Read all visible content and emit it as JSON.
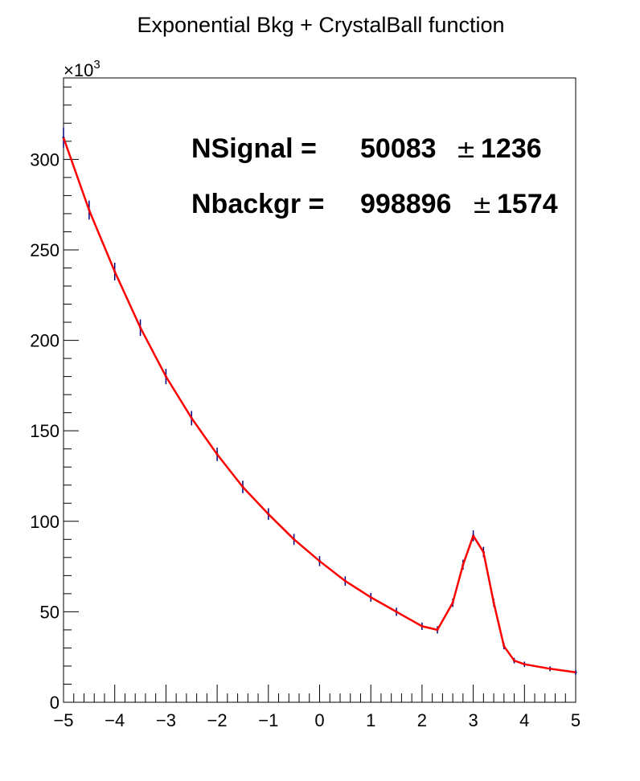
{
  "chart_data": {
    "type": "histogram",
    "title": "Exponential Bkg + CrystalBall function",
    "xlabel": "",
    "ylabel": "",
    "xlim": [
      -5,
      5
    ],
    "ylim": [
      0,
      345000
    ],
    "y_multiplier_label": "×10",
    "y_multiplier_exponent": "3",
    "x_ticks": [
      -5,
      -4,
      -3,
      -2,
      -1,
      0,
      1,
      2,
      3,
      4,
      5
    ],
    "x_tick_labels": [
      "−5",
      "−4",
      "−3",
      "−2",
      "−1",
      "0",
      "1",
      "2",
      "3",
      "4",
      "5"
    ],
    "y_ticks": [
      0,
      50000,
      100000,
      150000,
      200000,
      250000,
      300000
    ],
    "y_tick_labels": [
      "0",
      "50",
      "100",
      "150",
      "200",
      "250",
      "300"
    ],
    "series": [
      {
        "name": "",
        "kind": "histogram with error bars",
        "color": "#000080",
        "x": [
          -5.0,
          -4.5,
          -4.0,
          -3.5,
          -3.0,
          -2.5,
          -2.0,
          -1.5,
          -1.0,
          -0.5,
          0.0,
          0.5,
          1.0,
          1.5,
          2.0,
          2.3,
          2.6,
          2.8,
          3.0,
          3.2,
          3.4,
          3.6,
          3.8,
          4.0,
          4.5,
          5.0
        ],
        "y": [
          312000,
          272000,
          238000,
          207000,
          180000,
          157000,
          137000,
          119000,
          104000,
          90000,
          78000,
          67000,
          58000,
          50000,
          42000,
          40000,
          55000,
          76000,
          92000,
          83000,
          55000,
          31000,
          23000,
          21000,
          18500,
          16500
        ]
      },
      {
        "name": "",
        "kind": "fit function",
        "color": "#ff0000",
        "x": [
          -5.0,
          -4.5,
          -4.0,
          -3.5,
          -3.0,
          -2.5,
          -2.0,
          -1.5,
          -1.0,
          -0.5,
          0.0,
          0.5,
          1.0,
          1.5,
          2.0,
          2.3,
          2.6,
          2.8,
          3.0,
          3.2,
          3.4,
          3.6,
          3.8,
          4.0,
          4.5,
          5.0
        ],
        "y": [
          312000,
          272000,
          238000,
          207000,
          180000,
          157000,
          137000,
          119000,
          104000,
          90000,
          78000,
          67000,
          58000,
          50000,
          42000,
          40000,
          55000,
          76000,
          92000,
          83000,
          55000,
          31000,
          23000,
          21000,
          18500,
          16500
        ]
      }
    ],
    "annotations": [
      {
        "label": "NSignal =",
        "value": "50083",
        "pm": "±",
        "error": "1236"
      },
      {
        "label": "Nbackgr =",
        "value": "998896",
        "pm": "±",
        "error": "1574"
      }
    ]
  }
}
